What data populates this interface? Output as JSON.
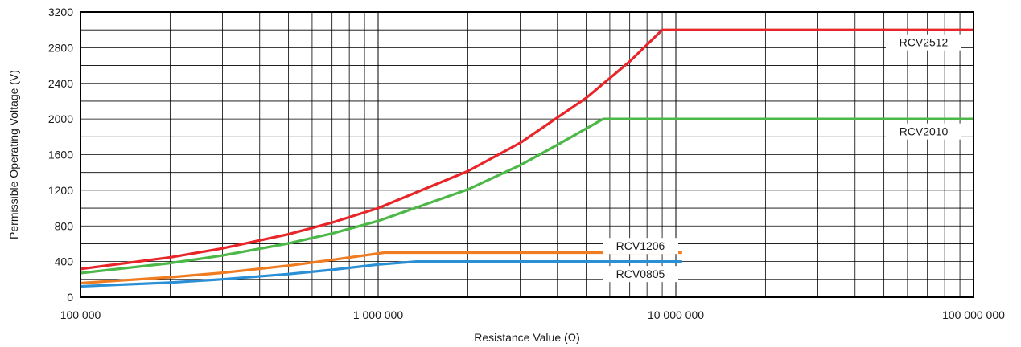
{
  "chart_data": {
    "type": "line",
    "xlabel": "Resistance Value (Ω)",
    "ylabel": "Permissible Operating Voltage (V)",
    "x_scale": "log",
    "xlim": [
      100000,
      100000000
    ],
    "ylim": [
      0,
      3200
    ],
    "x_ticks": [
      100000,
      1000000,
      10000000,
      100000000
    ],
    "x_tick_labels": [
      "100 000",
      "1 000 000",
      "10 000 000",
      "100 000 000"
    ],
    "y_ticks": [
      0,
      400,
      800,
      1200,
      1600,
      2000,
      2400,
      2800,
      3200
    ],
    "y_tick_labels": [
      "0",
      "400",
      "800",
      "1200",
      "1600",
      "2000",
      "2400",
      "2800",
      "3200"
    ],
    "grid": true,
    "series": [
      {
        "name": "RCV2512",
        "color": "#e8262a",
        "x": [
          100000,
          200000,
          300000,
          500000,
          700000,
          1000000,
          2000000,
          3000000,
          5000000,
          7000000,
          9000000,
          100000000
        ],
        "y": [
          316,
          447,
          548,
          707,
          837,
          1000,
          1414,
          1732,
          2236,
          2646,
          3000,
          3000
        ]
      },
      {
        "name": "RCV2010",
        "color": "#4cb848",
        "x": [
          100000,
          200000,
          300000,
          500000,
          700000,
          1000000,
          2000000,
          3000000,
          4000000,
          5700000,
          100000000
        ],
        "y": [
          270,
          382,
          468,
          604,
          715,
          855,
          1209,
          1481,
          1710,
          2000,
          2000
        ]
      },
      {
        "name": "RCV1206",
        "color": "#f07c22",
        "x": [
          100000,
          200000,
          300000,
          500000,
          700000,
          1050000,
          10500000
        ],
        "y": [
          158,
          224,
          274,
          354,
          418,
          500,
          500
        ]
      },
      {
        "name": "RCV0805",
        "color": "#2a8fd4",
        "x": [
          100000,
          200000,
          300000,
          500000,
          700000,
          1000000,
          1350000,
          10500000
        ],
        "y": [
          122,
          164,
          201,
          260,
          307,
          367,
          400,
          400
        ]
      }
    ]
  }
}
